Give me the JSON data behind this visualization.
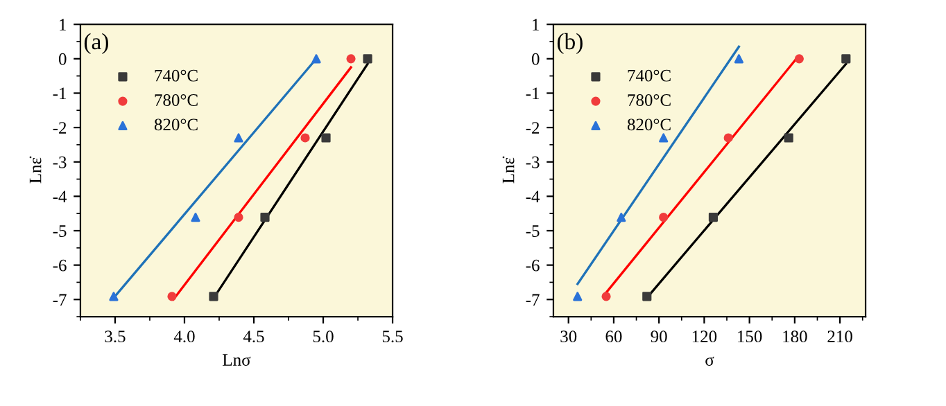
{
  "chart_data": [
    {
      "type": "scatter",
      "xlabel": "Lnσ",
      "ylabel": "Lnε̇",
      "annotations": [
        "(a)"
      ],
      "xlim": [
        3.25,
        5.5
      ],
      "xticks": [
        3.5,
        {
          "value": 4,
          "label": "4.0"
        },
        4.5,
        {
          "value": 5,
          "label": "5.0"
        },
        5.5
      ],
      "ylim": [
        -7.5,
        1
      ],
      "yticks": [
        -7,
        -6,
        -5,
        -4,
        -3,
        -2,
        -1,
        0,
        1
      ],
      "legend": "top left",
      "grid": false,
      "series": [
        {
          "name": "740°C",
          "color": "#3a3a3a",
          "marker": "square",
          "x": [
            4.21,
            4.58,
            5.02,
            5.32
          ],
          "values": [
            -6.91,
            -4.61,
            -2.3,
            0
          ]
        },
        {
          "name": "780°C",
          "color": "#f03c3c",
          "marker": "circle",
          "x": [
            3.91,
            4.39,
            4.87,
            5.2
          ],
          "values": [
            -6.91,
            -4.61,
            -2.3,
            0
          ]
        },
        {
          "name": "820°C",
          "color": "#2a72d8",
          "marker": "triangle",
          "x": [
            3.49,
            4.08,
            4.39,
            4.95
          ],
          "values": [
            -6.91,
            -4.61,
            -2.3,
            0
          ]
        },
        {
          "type": "line",
          "color": "#000000",
          "x": [
            4.22,
            5.32
          ],
          "values": [
            -6.9,
            -0.15
          ]
        },
        {
          "type": "line",
          "color": "#ff0000",
          "x": [
            3.92,
            5.2
          ],
          "values": [
            -7.0,
            -0.25
          ]
        },
        {
          "type": "line",
          "color": "#1f72b8",
          "x": [
            3.49,
            4.95
          ],
          "values": [
            -6.95,
            0
          ]
        }
      ]
    },
    {
      "type": "scatter",
      "xlabel": "σ",
      "ylabel": "Lnε̇",
      "annotations": [
        "(b)"
      ],
      "xlim": [
        20,
        227
      ],
      "xticks": [
        30,
        60,
        90,
        120,
        150,
        180,
        210
      ],
      "ylim": [
        -7.5,
        1
      ],
      "yticks": [
        -7,
        -6,
        -5,
        -4,
        -3,
        -2,
        -1,
        0,
        1
      ],
      "legend": "top left",
      "grid": false,
      "series": [
        {
          "name": "740°C",
          "color": "#3a3a3a",
          "marker": "square",
          "x": [
            82,
            126,
            176,
            214
          ],
          "values": [
            -6.91,
            -4.61,
            -2.3,
            0
          ]
        },
        {
          "name": "780°C",
          "color": "#f03c3c",
          "marker": "circle",
          "x": [
            55,
            93,
            136,
            183
          ],
          "values": [
            -6.91,
            -4.61,
            -2.3,
            0
          ]
        },
        {
          "name": "820°C",
          "color": "#2a72d8",
          "marker": "triangle",
          "x": [
            36,
            65,
            93,
            143
          ],
          "values": [
            -6.91,
            -4.61,
            -2.3,
            0
          ]
        },
        {
          "type": "line",
          "color": "#000000",
          "x": [
            82,
            214
          ],
          "values": [
            -6.95,
            -0.15
          ]
        },
        {
          "type": "line",
          "color": "#ff0000",
          "x": [
            55,
            182
          ],
          "values": [
            -6.8,
            0.05
          ]
        },
        {
          "type": "line",
          "color": "#1f72b8",
          "x": [
            36,
            143
          ],
          "values": [
            -6.55,
            0.35
          ]
        }
      ]
    }
  ]
}
